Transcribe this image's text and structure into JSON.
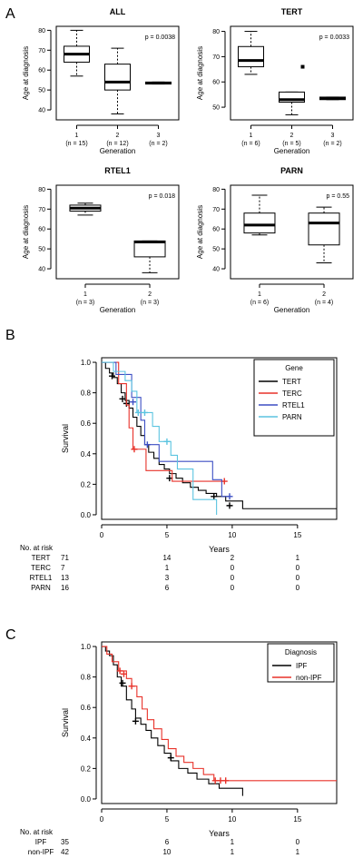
{
  "panel_labels": [
    "A",
    "B",
    "C"
  ],
  "colors": {
    "black": "#000000",
    "red": "#e8322a",
    "blue": "#3d4fc4",
    "cyan": "#5bc4e0"
  },
  "chart_data": [
    {
      "type": "box",
      "title": "ALL",
      "pvalue": "p = 0.0038",
      "ylabel": "Age at diagnosis",
      "xlabel": "Generation",
      "ylim": [
        35,
        82
      ],
      "yticks": [
        40,
        50,
        60,
        70,
        80
      ],
      "categories": [
        "1",
        "2",
        "3"
      ],
      "counts": [
        "(n = 15)",
        "(n = 12)",
        "(n = 2)"
      ],
      "boxes": [
        {
          "min": 57,
          "q1": 64,
          "median": 68,
          "q3": 72,
          "max": 80,
          "outliers": []
        },
        {
          "min": 38,
          "q1": 50,
          "median": 54,
          "q3": 63,
          "max": 71,
          "outliers": []
        },
        {
          "min": 53,
          "q1": 53,
          "median": 53.5,
          "q3": 54,
          "max": 54,
          "outliers": []
        }
      ]
    },
    {
      "type": "box",
      "title": "TERT",
      "pvalue": "p = 0.0033",
      "ylabel": "Age at diagnosis",
      "xlabel": "Generation",
      "ylim": [
        45,
        82
      ],
      "yticks": [
        50,
        60,
        70,
        80
      ],
      "categories": [
        "1",
        "2",
        "3"
      ],
      "counts": [
        "(n = 6)",
        "(n = 5)",
        "(n = 2)"
      ],
      "boxes": [
        {
          "min": 63,
          "q1": 66,
          "median": 68.5,
          "q3": 74,
          "max": 80,
          "outliers": []
        },
        {
          "min": 47,
          "q1": 52,
          "median": 53,
          "q3": 56,
          "max": 56,
          "outliers": [
            66
          ]
        },
        {
          "min": 53,
          "q1": 53,
          "median": 53.5,
          "q3": 54,
          "max": 54,
          "outliers": []
        }
      ]
    },
    {
      "type": "box",
      "title": "RTEL1",
      "pvalue": "p = 0.018",
      "ylabel": "Age at diagnosis",
      "xlabel": "Generation",
      "ylim": [
        35,
        82
      ],
      "yticks": [
        40,
        50,
        60,
        70,
        80
      ],
      "categories": [
        "1",
        "2"
      ],
      "counts": [
        "(n = 3)",
        "(n = 3)"
      ],
      "boxes": [
        {
          "min": 67,
          "q1": 69,
          "median": 70.5,
          "q3": 72,
          "max": 73,
          "outliers": []
        },
        {
          "min": 38,
          "q1": 46,
          "median": 53.5,
          "q3": 54,
          "max": 54,
          "outliers": []
        }
      ]
    },
    {
      "type": "box",
      "title": "PARN",
      "pvalue": "p = 0.55",
      "ylabel": "Age at diagnosis",
      "xlabel": "Generation",
      "ylim": [
        35,
        82
      ],
      "yticks": [
        40,
        50,
        60,
        70,
        80
      ],
      "categories": [
        "1",
        "2"
      ],
      "counts": [
        "(n = 6)",
        "(n = 4)"
      ],
      "boxes": [
        {
          "min": 57,
          "q1": 58,
          "median": 62,
          "q3": 68,
          "max": 77,
          "outliers": []
        },
        {
          "min": 43,
          "q1": 52,
          "median": 63,
          "q3": 68,
          "max": 71,
          "outliers": []
        }
      ]
    },
    {
      "type": "line",
      "subtype": "kaplan-meier",
      "ylabel": "Survival",
      "xlabel": "Years",
      "xlim": [
        0,
        18
      ],
      "ylim": [
        -0.03,
        1.03
      ],
      "xticks": [
        0,
        5,
        10,
        15
      ],
      "yticks": [
        0.0,
        0.2,
        0.4,
        0.6,
        0.8,
        1.0
      ],
      "legend_title": "Gene",
      "legend_position": "top-right",
      "series": [
        {
          "name": "TERT",
          "color": "#000000",
          "steps": [
            [
              0,
              1.0
            ],
            [
              0.3,
              0.96
            ],
            [
              0.6,
              0.93
            ],
            [
              0.9,
              0.9
            ],
            [
              1.2,
              0.86
            ],
            [
              1.5,
              0.8
            ],
            [
              1.8,
              0.75
            ],
            [
              2.1,
              0.7
            ],
            [
              2.4,
              0.64
            ],
            [
              2.7,
              0.58
            ],
            [
              3.0,
              0.52
            ],
            [
              3.3,
              0.46
            ],
            [
              3.6,
              0.41
            ],
            [
              4.0,
              0.37
            ],
            [
              4.4,
              0.33
            ],
            [
              4.8,
              0.3
            ],
            [
              5.2,
              0.27
            ],
            [
              5.7,
              0.24
            ],
            [
              6.2,
              0.21
            ],
            [
              6.8,
              0.18
            ],
            [
              7.4,
              0.16
            ],
            [
              8.0,
              0.14
            ],
            [
              8.8,
              0.12
            ],
            [
              9.5,
              0.09
            ],
            [
              10.8,
              0.04
            ],
            [
              18,
              0.04
            ]
          ],
          "censored": [
            [
              0.8,
              0.91
            ],
            [
              1.6,
              0.76
            ],
            [
              1.9,
              0.73
            ],
            [
              5.2,
              0.24
            ],
            [
              8.6,
              0.12
            ],
            [
              9.8,
              0.06
            ]
          ]
        },
        {
          "name": "TERC",
          "color": "#e8322a",
          "steps": [
            [
              0,
              1.0
            ],
            [
              1.3,
              1.0
            ],
            [
              1.3,
              0.86
            ],
            [
              1.9,
              0.72
            ],
            [
              2.1,
              0.57
            ],
            [
              2.4,
              0.43
            ],
            [
              3.4,
              0.29
            ],
            [
              5.4,
              0.22
            ],
            [
              9.4,
              0.22
            ]
          ],
          "censored": [
            [
              2.5,
              0.43
            ],
            [
              9.4,
              0.22
            ]
          ]
        },
        {
          "name": "RTEL1",
          "color": "#3d4fc4",
          "steps": [
            [
              0,
              1.0
            ],
            [
              1.1,
              0.92
            ],
            [
              2.3,
              0.77
            ],
            [
              3.0,
              0.62
            ],
            [
              3.3,
              0.46
            ],
            [
              4.4,
              0.35
            ],
            [
              8.5,
              0.35
            ],
            [
              8.5,
              0.23
            ],
            [
              9.2,
              0.12
            ],
            [
              9.8,
              0.12
            ]
          ],
          "censored": [
            [
              2.4,
              0.74
            ],
            [
              3.5,
              0.46
            ],
            [
              9.8,
              0.12
            ]
          ]
        },
        {
          "name": "PARN",
          "color": "#5bc4e0",
          "steps": [
            [
              0,
              1.0
            ],
            [
              0.9,
              0.94
            ],
            [
              1.8,
              0.88
            ],
            [
              2.3,
              0.81
            ],
            [
              2.7,
              0.67
            ],
            [
              3.5,
              0.67
            ],
            [
              3.9,
              0.58
            ],
            [
              4.4,
              0.48
            ],
            [
              5.0,
              0.48
            ],
            [
              5.3,
              0.39
            ],
            [
              5.8,
              0.3
            ],
            [
              6.5,
              0.3
            ],
            [
              7.0,
              0.1
            ],
            [
              8.0,
              0.1
            ],
            [
              8.8,
              0.07
            ],
            [
              8.8,
              0.0
            ]
          ],
          "censored": [
            [
              2.8,
              0.67
            ],
            [
              3.3,
              0.67
            ],
            [
              5.0,
              0.48
            ]
          ]
        }
      ],
      "risk_table": {
        "header": "No. at risk",
        "time_points": [
          0,
          5,
          10,
          15
        ],
        "rows": [
          {
            "label": "TERT",
            "values": [
              "71",
              "14",
              "2",
              "1"
            ]
          },
          {
            "label": "TERC",
            "values": [
              "7",
              "1",
              "0",
              "0"
            ]
          },
          {
            "label": "RTEL1",
            "values": [
              "13",
              "3",
              "0",
              "0"
            ]
          },
          {
            "label": "PARN",
            "values": [
              "16",
              "6",
              "0",
              "0"
            ]
          }
        ]
      }
    },
    {
      "type": "line",
      "subtype": "kaplan-meier",
      "ylabel": "Survival",
      "xlabel": "Years",
      "xlim": [
        0,
        18
      ],
      "ylim": [
        -0.03,
        1.03
      ],
      "xticks": [
        0,
        5,
        10,
        15
      ],
      "yticks": [
        0.0,
        0.2,
        0.4,
        0.6,
        0.8,
        1.0
      ],
      "legend_title": "Diagnosis",
      "legend_position": "top-right",
      "series": [
        {
          "name": "IPF",
          "color": "#000000",
          "steps": [
            [
              0,
              1.0
            ],
            [
              0.3,
              0.97
            ],
            [
              0.6,
              0.94
            ],
            [
              0.9,
              0.88
            ],
            [
              1.2,
              0.8
            ],
            [
              1.5,
              0.74
            ],
            [
              1.9,
              0.65
            ],
            [
              2.3,
              0.59
            ],
            [
              2.6,
              0.53
            ],
            [
              3.0,
              0.49
            ],
            [
              3.4,
              0.45
            ],
            [
              3.8,
              0.4
            ],
            [
              4.3,
              0.35
            ],
            [
              4.8,
              0.3
            ],
            [
              5.3,
              0.25
            ],
            [
              5.9,
              0.2
            ],
            [
              6.6,
              0.17
            ],
            [
              7.3,
              0.13
            ],
            [
              8.2,
              0.1
            ],
            [
              9.0,
              0.07
            ],
            [
              10.8,
              0.02
            ]
          ],
          "censored": [
            [
              1.6,
              0.76
            ],
            [
              2.6,
              0.51
            ],
            [
              5.3,
              0.27
            ]
          ]
        },
        {
          "name": "non-IPF",
          "color": "#e8322a",
          "steps": [
            [
              0,
              1.0
            ],
            [
              0.4,
              0.95
            ],
            [
              0.8,
              0.9
            ],
            [
              1.3,
              0.84
            ],
            [
              1.9,
              0.79
            ],
            [
              2.3,
              0.74
            ],
            [
              2.7,
              0.67
            ],
            [
              3.1,
              0.59
            ],
            [
              3.5,
              0.52
            ],
            [
              4.0,
              0.46
            ],
            [
              4.6,
              0.39
            ],
            [
              5.1,
              0.33
            ],
            [
              5.7,
              0.28
            ],
            [
              6.3,
              0.24
            ],
            [
              7.0,
              0.2
            ],
            [
              7.8,
              0.16
            ],
            [
              8.6,
              0.12
            ],
            [
              18,
              0.12
            ]
          ],
          "censored": [
            [
              1.4,
              0.84
            ],
            [
              1.7,
              0.82
            ],
            [
              2.3,
              0.74
            ],
            [
              8.7,
              0.12
            ],
            [
              9.1,
              0.12
            ],
            [
              9.5,
              0.12
            ]
          ]
        }
      ],
      "risk_table": {
        "header": "No. at risk",
        "time_points": [
          0,
          5,
          10,
          15
        ],
        "rows": [
          {
            "label": "IPF",
            "values": [
              "35",
              "6",
              "1",
              "0"
            ]
          },
          {
            "label": "non-IPF",
            "values": [
              "42",
              "10",
              "1",
              "1"
            ]
          }
        ]
      }
    }
  ]
}
